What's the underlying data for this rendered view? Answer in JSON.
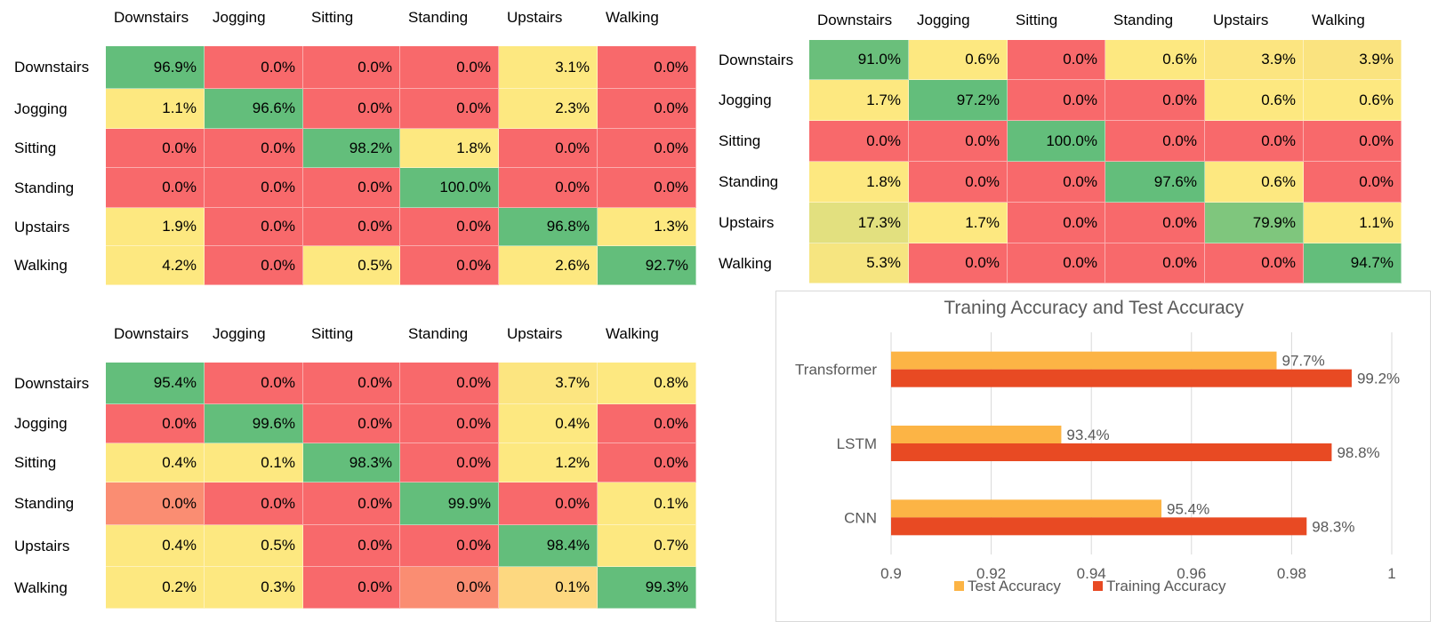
{
  "matrices": [
    {
      "columns": [
        "Downstairs",
        "Jogging",
        "Sitting",
        "Standing",
        "Upstairs",
        "Walking"
      ],
      "rows": [
        {
          "label": "Downstairs",
          "cells": [
            "96.9%",
            "0.0%",
            "0.0%",
            "0.0%",
            "3.1%",
            "0.0%"
          ]
        },
        {
          "label": "Jogging",
          "cells": [
            "1.1%",
            "96.6%",
            "0.0%",
            "0.0%",
            "2.3%",
            "0.0%"
          ]
        },
        {
          "label": "Sitting",
          "cells": [
            "0.0%",
            "0.0%",
            "98.2%",
            "1.8%",
            "0.0%",
            "0.0%"
          ]
        },
        {
          "label": "Standing",
          "cells": [
            "0.0%",
            "0.0%",
            "0.0%",
            "100.0%",
            "0.0%",
            "0.0%"
          ]
        },
        {
          "label": "Upstairs",
          "cells": [
            "1.9%",
            "0.0%",
            "0.0%",
            "0.0%",
            "96.8%",
            "1.3%"
          ]
        },
        {
          "label": "Walking",
          "cells": [
            "4.2%",
            "0.0%",
            "0.5%",
            "0.0%",
            "2.6%",
            "92.7%"
          ]
        }
      ],
      "colors": [
        [
          "#63be7b",
          "#f8696b",
          "#f8696b",
          "#f8696b",
          "#fde880",
          "#f8696b"
        ],
        [
          "#fde880",
          "#63be7b",
          "#f8696b",
          "#f8696b",
          "#fde880",
          "#f8696b"
        ],
        [
          "#f8696b",
          "#f8696b",
          "#63be7b",
          "#fde880",
          "#f8696b",
          "#f8696b"
        ],
        [
          "#f8696b",
          "#f8696b",
          "#f8696b",
          "#63be7b",
          "#f8696b",
          "#f8696b"
        ],
        [
          "#fde880",
          "#f8696b",
          "#f8696b",
          "#f8696b",
          "#63be7b",
          "#fde880"
        ],
        [
          "#fde880",
          "#f8696b",
          "#fde880",
          "#f8696b",
          "#fde880",
          "#63be7b"
        ]
      ]
    },
    {
      "columns": [
        "Downstairs",
        "Jogging",
        "Sitting",
        "Standing",
        "Upstairs",
        "Walking"
      ],
      "rows": [
        {
          "label": "Downstairs",
          "cells": [
            "91.0%",
            "0.6%",
            "0.0%",
            "0.6%",
            "3.9%",
            "3.9%"
          ]
        },
        {
          "label": "Jogging",
          "cells": [
            "1.7%",
            "97.2%",
            "0.0%",
            "0.0%",
            "0.6%",
            "0.6%"
          ]
        },
        {
          "label": "Sitting",
          "cells": [
            "0.0%",
            "0.0%",
            "100.0%",
            "0.0%",
            "0.0%",
            "0.0%"
          ]
        },
        {
          "label": "Standing",
          "cells": [
            "1.8%",
            "0.0%",
            "0.0%",
            "97.6%",
            "0.6%",
            "0.0%"
          ]
        },
        {
          "label": "Upstairs",
          "cells": [
            "17.3%",
            "1.7%",
            "0.0%",
            "0.0%",
            "79.9%",
            "1.1%"
          ]
        },
        {
          "label": "Walking",
          "cells": [
            "5.3%",
            "0.0%",
            "0.0%",
            "0.0%",
            "0.0%",
            "94.7%"
          ]
        }
      ],
      "colors": [
        [
          "#6abf7b",
          "#fde880",
          "#f8696b",
          "#fde880",
          "#fce580",
          "#fae37f"
        ],
        [
          "#fde880",
          "#63be7b",
          "#f8696b",
          "#f8696b",
          "#fde880",
          "#fde880"
        ],
        [
          "#f8696b",
          "#f8696b",
          "#63be7b",
          "#f8696b",
          "#f8696b",
          "#f8696b"
        ],
        [
          "#fde880",
          "#f8696b",
          "#f8696b",
          "#63be7b",
          "#fde880",
          "#f8696b"
        ],
        [
          "#e2e07f",
          "#fde880",
          "#f8696b",
          "#f8696b",
          "#7fc67d",
          "#fde880"
        ],
        [
          "#f6e580",
          "#f8696b",
          "#f8696b",
          "#f8696b",
          "#f8696b",
          "#63be7b"
        ]
      ]
    },
    {
      "columns": [
        "Downstairs",
        "Jogging",
        "Sitting",
        "Standing",
        "Upstairs",
        "Walking"
      ],
      "rows": [
        {
          "label": "Downstairs",
          "cells": [
            "95.4%",
            "0.0%",
            "0.0%",
            "0.0%",
            "3.7%",
            "0.8%"
          ]
        },
        {
          "label": "Jogging",
          "cells": [
            "0.0%",
            "99.6%",
            "0.0%",
            "0.0%",
            "0.4%",
            "0.0%"
          ]
        },
        {
          "label": "Sitting",
          "cells": [
            "0.4%",
            "0.1%",
            "98.3%",
            "0.0%",
            "1.2%",
            "0.0%"
          ]
        },
        {
          "label": "Standing",
          "cells": [
            "0.0%",
            "0.0%",
            "0.0%",
            "99.9%",
            "0.0%",
            "0.1%"
          ]
        },
        {
          "label": "Upstairs",
          "cells": [
            "0.4%",
            "0.5%",
            "0.0%",
            "0.0%",
            "98.4%",
            "0.7%"
          ]
        },
        {
          "label": "Walking",
          "cells": [
            "0.2%",
            "0.3%",
            "0.0%",
            "0.0%",
            "0.1%",
            "99.3%"
          ]
        }
      ],
      "colors": [
        [
          "#63be7b",
          "#f8696b",
          "#f8696b",
          "#f8696b",
          "#fce580",
          "#fde880"
        ],
        [
          "#f8696b",
          "#63be7b",
          "#f8696b",
          "#f8696b",
          "#fde880",
          "#f8696b"
        ],
        [
          "#fde880",
          "#fde880",
          "#63be7b",
          "#f8696b",
          "#fde880",
          "#f8696b"
        ],
        [
          "#fa8d72",
          "#f8696b",
          "#f8696b",
          "#63be7b",
          "#f8696b",
          "#fde880"
        ],
        [
          "#fde880",
          "#fde880",
          "#f8696b",
          "#f8696b",
          "#63be7b",
          "#fde880"
        ],
        [
          "#fde880",
          "#fde880",
          "#f8696b",
          "#fa8d72",
          "#fdd880",
          "#63be7b"
        ]
      ]
    }
  ],
  "chart_data": {
    "type": "bar",
    "orientation": "horizontal",
    "title": "Traning Accuracy and Test Accuracy",
    "categories": [
      "Transformer",
      "LSTM",
      "CNN"
    ],
    "series": [
      {
        "name": "Test Accuracy",
        "values": [
          0.977,
          0.934,
          0.954
        ],
        "labels": [
          "97.7%",
          "93.4%",
          "95.4%"
        ],
        "color": "#fcb445"
      },
      {
        "name": "Training Accuracy",
        "values": [
          0.992,
          0.988,
          0.983
        ],
        "labels": [
          "99.2%",
          "98.8%",
          "98.3%"
        ],
        "color": "#e84a23"
      }
    ],
    "xlim": [
      0.9,
      1
    ],
    "xticks": [
      0.9,
      0.92,
      0.94,
      0.96,
      0.98,
      1
    ],
    "xtick_labels": [
      "0.9",
      "0.92",
      "0.94",
      "0.96",
      "0.98",
      "1"
    ],
    "grid": true,
    "legend": "bottom"
  }
}
